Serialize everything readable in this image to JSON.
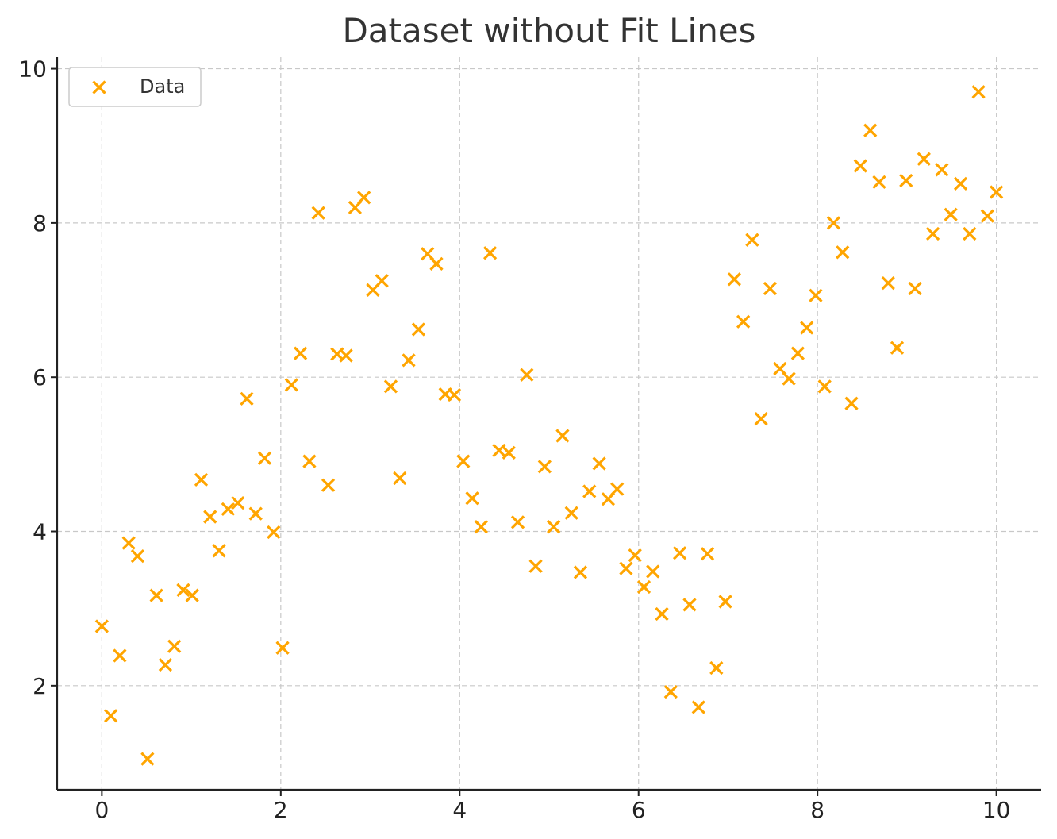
{
  "chart_data": {
    "type": "scatter",
    "title": "Dataset without Fit Lines",
    "xlabel": "",
    "ylabel": "",
    "xlim": [
      -0.5,
      10.5
    ],
    "ylim": [
      0.65,
      10.15
    ],
    "x_ticks": [
      "0",
      "2",
      "4",
      "6",
      "8",
      "10"
    ],
    "y_ticks": [
      "2",
      "4",
      "6",
      "8",
      "10"
    ],
    "grid": true,
    "legend_position": "top-left",
    "color": "#FFA500",
    "marker": "x",
    "series": [
      {
        "name": "Data",
        "points": [
          [
            0.0,
            2.77
          ],
          [
            0.1,
            1.61
          ],
          [
            0.2,
            2.39
          ],
          [
            0.3,
            3.85
          ],
          [
            0.4,
            3.68
          ],
          [
            0.51,
            1.05
          ],
          [
            0.61,
            3.17
          ],
          [
            0.71,
            2.27
          ],
          [
            0.81,
            2.51
          ],
          [
            0.91,
            3.24
          ],
          [
            1.01,
            3.17
          ],
          [
            1.11,
            4.67
          ],
          [
            1.21,
            4.19
          ],
          [
            1.31,
            3.75
          ],
          [
            1.41,
            4.29
          ],
          [
            1.52,
            4.37
          ],
          [
            1.62,
            5.72
          ],
          [
            1.72,
            4.23
          ],
          [
            1.82,
            4.95
          ],
          [
            1.92,
            3.99
          ],
          [
            2.02,
            2.49
          ],
          [
            2.12,
            5.9
          ],
          [
            2.22,
            6.31
          ],
          [
            2.32,
            4.91
          ],
          [
            2.42,
            8.13
          ],
          [
            2.53,
            4.6
          ],
          [
            2.63,
            6.3
          ],
          [
            2.73,
            6.28
          ],
          [
            2.83,
            8.2
          ],
          [
            2.93,
            8.33
          ],
          [
            3.03,
            7.13
          ],
          [
            3.13,
            7.25
          ],
          [
            3.23,
            5.88
          ],
          [
            3.33,
            4.69
          ],
          [
            3.43,
            6.22
          ],
          [
            3.54,
            6.62
          ],
          [
            3.64,
            7.6
          ],
          [
            3.74,
            7.47
          ],
          [
            3.84,
            5.78
          ],
          [
            3.94,
            5.77
          ],
          [
            4.04,
            4.91
          ],
          [
            4.14,
            4.43
          ],
          [
            4.24,
            4.06
          ],
          [
            4.34,
            7.61
          ],
          [
            4.44,
            5.05
          ],
          [
            4.55,
            5.02
          ],
          [
            4.65,
            4.12
          ],
          [
            4.75,
            6.03
          ],
          [
            4.85,
            3.55
          ],
          [
            4.95,
            4.84
          ],
          [
            5.05,
            4.06
          ],
          [
            5.15,
            5.24
          ],
          [
            5.25,
            4.24
          ],
          [
            5.35,
            3.47
          ],
          [
            5.45,
            4.52
          ],
          [
            5.56,
            4.88
          ],
          [
            5.66,
            4.42
          ],
          [
            5.76,
            4.55
          ],
          [
            5.86,
            3.52
          ],
          [
            5.96,
            3.69
          ],
          [
            6.06,
            3.28
          ],
          [
            6.16,
            3.48
          ],
          [
            6.26,
            2.93
          ],
          [
            6.36,
            1.92
          ],
          [
            6.46,
            3.72
          ],
          [
            6.57,
            3.05
          ],
          [
            6.67,
            1.72
          ],
          [
            6.77,
            3.71
          ],
          [
            6.87,
            2.23
          ],
          [
            6.97,
            3.09
          ],
          [
            7.07,
            7.27
          ],
          [
            7.17,
            6.72
          ],
          [
            7.27,
            7.78
          ],
          [
            7.37,
            5.46
          ],
          [
            7.47,
            7.15
          ],
          [
            7.58,
            6.11
          ],
          [
            7.68,
            5.98
          ],
          [
            7.78,
            6.31
          ],
          [
            7.88,
            6.64
          ],
          [
            7.98,
            7.06
          ],
          [
            8.08,
            5.88
          ],
          [
            8.18,
            8.0
          ],
          [
            8.28,
            7.62
          ],
          [
            8.38,
            5.66
          ],
          [
            8.48,
            8.74
          ],
          [
            8.59,
            9.2
          ],
          [
            8.69,
            8.53
          ],
          [
            8.79,
            7.22
          ],
          [
            8.89,
            6.38
          ],
          [
            8.99,
            8.55
          ],
          [
            9.09,
            7.15
          ],
          [
            9.19,
            8.83
          ],
          [
            9.29,
            7.86
          ],
          [
            9.39,
            8.69
          ],
          [
            9.49,
            8.11
          ],
          [
            9.6,
            8.51
          ],
          [
            9.7,
            7.86
          ],
          [
            9.8,
            9.7
          ],
          [
            9.9,
            8.09
          ],
          [
            10.0,
            8.4
          ]
        ]
      }
    ]
  }
}
